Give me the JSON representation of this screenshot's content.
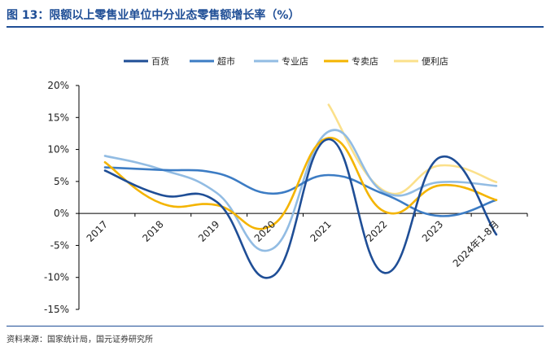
{
  "figure_title": "图 13：限额以上零售业单位中分业态零售额增长率（%）",
  "source_note": "资料来源：国家统计局，国元证券研究所",
  "chart_data": {
    "type": "line",
    "categories": [
      "2017",
      "2018",
      "2019",
      "2020",
      "2021",
      "2022",
      "2023",
      "2024年1-8月"
    ],
    "ylim": [
      -15,
      20
    ],
    "yticks": [
      -15,
      -10,
      -5,
      0,
      5,
      10,
      15,
      20
    ],
    "ytick_labels": [
      "-15%",
      "-10%",
      "-5%",
      "0%",
      "5%",
      "10%",
      "15%",
      "20%"
    ],
    "legend_position": "top",
    "grid": false,
    "smooth": true,
    "series": [
      {
        "name": "百货",
        "color": "#1f4e96",
        "values": [
          6.7,
          2.9,
          1.8,
          -9.8,
          11.6,
          -9.3,
          8.8,
          -3.3
        ]
      },
      {
        "name": "超市",
        "color": "#3c7cc4",
        "values": [
          7.2,
          6.8,
          6.3,
          3.1,
          6.0,
          3.0,
          -0.4,
          2.1
        ]
      },
      {
        "name": "专业店",
        "color": "#92bce3",
        "values": [
          9.0,
          6.9,
          3.2,
          -5.5,
          12.8,
          3.3,
          4.9,
          4.3
        ]
      },
      {
        "name": "专卖店",
        "color": "#f4b400",
        "values": [
          8.0,
          1.6,
          1.3,
          -1.8,
          11.8,
          0.3,
          4.4,
          2.1
        ]
      },
      {
        "name": "便利店",
        "color": "#fbe08b",
        "values": [
          null,
          null,
          null,
          null,
          17.0,
          3.5,
          7.5,
          4.9
        ]
      }
    ]
  }
}
